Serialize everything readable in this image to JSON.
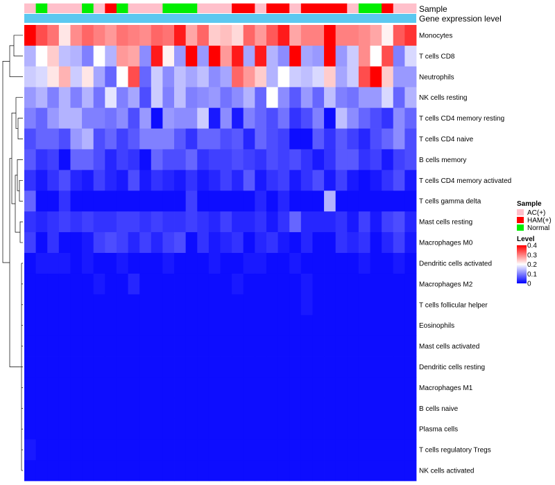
{
  "chart_data": {
    "type": "heatmap",
    "title": "",
    "annotation_titles": {
      "sample": "Sample",
      "gene": "Gene expression level"
    },
    "sample_groups": [
      "AC(+)",
      "Normal",
      "AC(+)",
      "AC(+)",
      "AC(+)",
      "Normal",
      "AC(+)",
      "HAM(+)",
      "Normal",
      "AC(+)",
      "AC(+)",
      "AC(+)",
      "Normal",
      "Normal",
      "Normal",
      "AC(+)",
      "AC(+)",
      "AC(+)",
      "HAM(+)",
      "HAM(+)",
      "AC(+)",
      "HAM(+)",
      "HAM(+)",
      "AC(+)",
      "HAM(+)",
      "HAM(+)",
      "HAM(+)",
      "HAM(+)",
      "AC(+)",
      "Normal",
      "Normal",
      "HAM(+)",
      "AC(+)",
      "AC(+)"
    ],
    "rows": [
      "Monocytes",
      "T cells CD8",
      "Neutrophils",
      "NK cells resting",
      "T cells CD4 memory resting",
      "T cells CD4 naive",
      "B cells memory",
      "T cells CD4 memory activated",
      "T cells gamma delta",
      "Mast cells resting",
      "Macrophages M0",
      "Dendritic cells activated",
      "Macrophages M2",
      "T cells follicular helper",
      "Eosinophils",
      "Mast cells activated",
      "Dendritic cells resting",
      "Macrophages M1",
      "B cells naive",
      "Plasma cells",
      "T cells regulatory  Tregs",
      "NK cells activated"
    ],
    "values": [
      [
        0.4,
        0.34,
        0.31,
        0.22,
        0.29,
        0.32,
        0.3,
        0.28,
        0.31,
        0.3,
        0.29,
        0.32,
        0.31,
        0.38,
        0.27,
        0.32,
        0.24,
        0.25,
        0.23,
        0.32,
        0.28,
        0.33,
        0.38,
        0.27,
        0.3,
        0.3,
        0.4,
        0.3,
        0.3,
        0.29,
        0.27,
        0.21,
        0.33,
        0.36
      ],
      [
        0.14,
        0.2,
        0.24,
        0.15,
        0.14,
        0.1,
        0.2,
        0.14,
        0.28,
        0.27,
        0.11,
        0.38,
        0.21,
        0.12,
        0.41,
        0.12,
        0.41,
        0.28,
        0.38,
        0.13,
        0.38,
        0.14,
        0.11,
        0.4,
        0.13,
        0.12,
        0.41,
        0.12,
        0.16,
        0.29,
        0.2,
        0.34,
        0.1,
        0.17
      ],
      [
        0.16,
        0.17,
        0.22,
        0.26,
        0.16,
        0.22,
        0.13,
        0.08,
        0.2,
        0.34,
        0.08,
        0.16,
        0.11,
        0.15,
        0.13,
        0.15,
        0.11,
        0.13,
        0.32,
        0.28,
        0.24,
        0.14,
        0.2,
        0.16,
        0.15,
        0.17,
        0.24,
        0.13,
        0.16,
        0.34,
        0.4,
        0.24,
        0.12,
        0.12
      ],
      [
        0.12,
        0.14,
        0.1,
        0.14,
        0.1,
        0.14,
        0.09,
        0.18,
        0.1,
        0.13,
        0.06,
        0.16,
        0.1,
        0.15,
        0.1,
        0.11,
        0.12,
        0.09,
        0.11,
        0.14,
        0.08,
        0.2,
        0.11,
        0.07,
        0.12,
        0.08,
        0.15,
        0.1,
        0.09,
        0.12,
        0.12,
        0.17,
        0.08,
        0.14
      ],
      [
        0.1,
        0.08,
        0.12,
        0.14,
        0.14,
        0.1,
        0.1,
        0.09,
        0.11,
        0.06,
        0.12,
        0.01,
        0.12,
        0.11,
        0.11,
        0.16,
        0.02,
        0.11,
        0.02,
        0.1,
        0.08,
        0.06,
        0.09,
        0.04,
        0.06,
        0.1,
        0.01,
        0.15,
        0.11,
        0.08,
        0.06,
        0.04,
        0.11,
        0.08
      ],
      [
        0.06,
        0.08,
        0.08,
        0.06,
        0.12,
        0.14,
        0.06,
        0.08,
        0.05,
        0.07,
        0.1,
        0.1,
        0.1,
        0.07,
        0.04,
        0.08,
        0.08,
        0.06,
        0.07,
        0.03,
        0.08,
        0.06,
        0.05,
        0.01,
        0.01,
        0.07,
        0.04,
        0.07,
        0.05,
        0.03,
        0.06,
        0.08,
        0.11,
        0.06
      ],
      [
        0.07,
        0.04,
        0.05,
        0.01,
        0.08,
        0.08,
        0.06,
        0.03,
        0.05,
        0.04,
        0.01,
        0.08,
        0.06,
        0.06,
        0.08,
        0.04,
        0.05,
        0.05,
        0.06,
        0.05,
        0.04,
        0.06,
        0.05,
        0.06,
        0.04,
        0.02,
        0.04,
        0.07,
        0.07,
        0.04,
        0.05,
        0.02,
        0.05,
        0.06
      ],
      [
        0.04,
        0.02,
        0.04,
        0.06,
        0.03,
        0.02,
        0.05,
        0.03,
        0.02,
        0.06,
        0.02,
        0.04,
        0.03,
        0.02,
        0.04,
        0.02,
        0.03,
        0.05,
        0.03,
        0.07,
        0.02,
        0.04,
        0.05,
        0.02,
        0.04,
        0.06,
        0.02,
        0.05,
        0.02,
        0.01,
        0.02,
        0.04,
        0.06,
        0.02
      ],
      [
        0.08,
        0.01,
        0.01,
        0.04,
        0.01,
        0.01,
        0.01,
        0.01,
        0.01,
        0.01,
        0.01,
        0.01,
        0.01,
        0.01,
        0.05,
        0.01,
        0.01,
        0.01,
        0.01,
        0.01,
        0.03,
        0.01,
        0.03,
        0.01,
        0.01,
        0.01,
        0.14,
        0.01,
        0.01,
        0.01,
        0.01,
        0.01,
        0.01,
        0.01
      ],
      [
        0.04,
        0.03,
        0.04,
        0.05,
        0.04,
        0.05,
        0.04,
        0.04,
        0.05,
        0.05,
        0.04,
        0.05,
        0.04,
        0.04,
        0.05,
        0.04,
        0.03,
        0.05,
        0.03,
        0.03,
        0.04,
        0.02,
        0.04,
        0.08,
        0.03,
        0.03,
        0.03,
        0.04,
        0.02,
        0.05,
        0.02,
        0.05,
        0.06,
        0.03
      ],
      [
        0.05,
        0.01,
        0.04,
        0.01,
        0.01,
        0.02,
        0.05,
        0.06,
        0.05,
        0.03,
        0.05,
        0.03,
        0.05,
        0.06,
        0.01,
        0.04,
        0.02,
        0.03,
        0.04,
        0.01,
        0.03,
        0.04,
        0.02,
        0.01,
        0.03,
        0.01,
        0.01,
        0.04,
        0.03,
        0.04,
        0.01,
        0.03,
        0.05,
        0.02
      ],
      [
        0.01,
        0.02,
        0.02,
        0.02,
        0.01,
        0.02,
        0.01,
        0.01,
        0.02,
        0.01,
        0.01,
        0.01,
        0.02,
        0.01,
        0.01,
        0.01,
        0.02,
        0.01,
        0.01,
        0.02,
        0.02,
        0.01,
        0.01,
        0.02,
        0.01,
        0.01,
        0.01,
        0.01,
        0.01,
        0.02,
        0.01,
        0.01,
        0.02,
        0.01
      ],
      [
        0.01,
        0.01,
        0.01,
        0.01,
        0.01,
        0.01,
        0.02,
        0.01,
        0.01,
        0.03,
        0.01,
        0.01,
        0.01,
        0.01,
        0.01,
        0.01,
        0.01,
        0.01,
        0.02,
        0.01,
        0.01,
        0.01,
        0.01,
        0.01,
        0.02,
        0.01,
        0.01,
        0.01,
        0.01,
        0.01,
        0.01,
        0.01,
        0.01,
        0.01
      ],
      [
        0.01,
        0.01,
        0.01,
        0.01,
        0.01,
        0.01,
        0.01,
        0.01,
        0.01,
        0.01,
        0.01,
        0.01,
        0.01,
        0.01,
        0.01,
        0.01,
        0.01,
        0.01,
        0.01,
        0.01,
        0.01,
        0.01,
        0.01,
        0.01,
        0.02,
        0.01,
        0.01,
        0.01,
        0.01,
        0.01,
        0.01,
        0.01,
        0.01,
        0.01
      ],
      [
        0.01,
        0.01,
        0.01,
        0.01,
        0.01,
        0.01,
        0.01,
        0.01,
        0.01,
        0.01,
        0.01,
        0.01,
        0.01,
        0.01,
        0.01,
        0.01,
        0.01,
        0.01,
        0.01,
        0.01,
        0.01,
        0.01,
        0.01,
        0.01,
        0.01,
        0.01,
        0.01,
        0.01,
        0.01,
        0.01,
        0.01,
        0.01,
        0.01,
        0.01
      ],
      [
        0.01,
        0.01,
        0.01,
        0.01,
        0.01,
        0.01,
        0.01,
        0.01,
        0.01,
        0.01,
        0.01,
        0.01,
        0.01,
        0.01,
        0.01,
        0.01,
        0.01,
        0.01,
        0.01,
        0.01,
        0.01,
        0.01,
        0.01,
        0.01,
        0.01,
        0.01,
        0.01,
        0.01,
        0.01,
        0.01,
        0.01,
        0.01,
        0.01,
        0.01
      ],
      [
        0.01,
        0.01,
        0.01,
        0.01,
        0.01,
        0.01,
        0.01,
        0.01,
        0.01,
        0.01,
        0.01,
        0.01,
        0.01,
        0.01,
        0.01,
        0.01,
        0.01,
        0.01,
        0.01,
        0.01,
        0.01,
        0.01,
        0.01,
        0.01,
        0.01,
        0.01,
        0.01,
        0.01,
        0.01,
        0.01,
        0.01,
        0.01,
        0.01,
        0.01
      ],
      [
        0.01,
        0.01,
        0.01,
        0.01,
        0.01,
        0.01,
        0.01,
        0.01,
        0.01,
        0.01,
        0.01,
        0.01,
        0.01,
        0.01,
        0.01,
        0.01,
        0.01,
        0.01,
        0.01,
        0.01,
        0.01,
        0.01,
        0.01,
        0.01,
        0.01,
        0.01,
        0.01,
        0.01,
        0.01,
        0.01,
        0.01,
        0.01,
        0.01,
        0.01
      ],
      [
        0.01,
        0.01,
        0.01,
        0.01,
        0.01,
        0.01,
        0.01,
        0.01,
        0.01,
        0.01,
        0.01,
        0.01,
        0.01,
        0.01,
        0.01,
        0.01,
        0.01,
        0.01,
        0.01,
        0.01,
        0.01,
        0.01,
        0.01,
        0.01,
        0.01,
        0.01,
        0.01,
        0.01,
        0.01,
        0.01,
        0.01,
        0.01,
        0.01,
        0.01
      ],
      [
        0.01,
        0.01,
        0.01,
        0.01,
        0.01,
        0.01,
        0.01,
        0.01,
        0.01,
        0.01,
        0.01,
        0.01,
        0.01,
        0.01,
        0.01,
        0.01,
        0.01,
        0.01,
        0.01,
        0.01,
        0.01,
        0.01,
        0.01,
        0.01,
        0.01,
        0.01,
        0.01,
        0.01,
        0.01,
        0.01,
        0.01,
        0.01,
        0.01,
        0.01
      ],
      [
        0.02,
        0.01,
        0.01,
        0.01,
        0.01,
        0.01,
        0.01,
        0.01,
        0.01,
        0.01,
        0.01,
        0.01,
        0.01,
        0.01,
        0.01,
        0.01,
        0.01,
        0.01,
        0.01,
        0.01,
        0.01,
        0.01,
        0.01,
        0.01,
        0.01,
        0.01,
        0.01,
        0.01,
        0.01,
        0.01,
        0.01,
        0.01,
        0.01,
        0.01
      ],
      [
        0.01,
        0.01,
        0.01,
        0.01,
        0.01,
        0.01,
        0.01,
        0.01,
        0.01,
        0.01,
        0.01,
        0.01,
        0.01,
        0.01,
        0.01,
        0.01,
        0.01,
        0.01,
        0.01,
        0.01,
        0.01,
        0.01,
        0.01,
        0.01,
        0.01,
        0.01,
        0.01,
        0.01,
        0.01,
        0.01,
        0.01,
        0.01,
        0.01,
        0.01
      ]
    ],
    "legend_sample": {
      "title": "Sample",
      "entries": [
        {
          "label": "AC(+)",
          "color": "#FFC0CB"
        },
        {
          "label": "HAM(+)",
          "color": "#FF0000"
        },
        {
          "label": "Normal",
          "color": "#00EE00"
        }
      ]
    },
    "legend_level": {
      "title": "Level",
      "range": [
        0,
        0.4
      ],
      "ticks": [
        "0.4",
        "0.3",
        "0.2",
        "0.1",
        "0"
      ],
      "tick_values": [
        0.4,
        0.3,
        0.2,
        0.1,
        0.0
      ],
      "colors": {
        "low": "#0000FF",
        "mid": "#FFFFFF",
        "high": "#FF0000"
      }
    },
    "gene_bar_color": "#5BC8F0"
  }
}
